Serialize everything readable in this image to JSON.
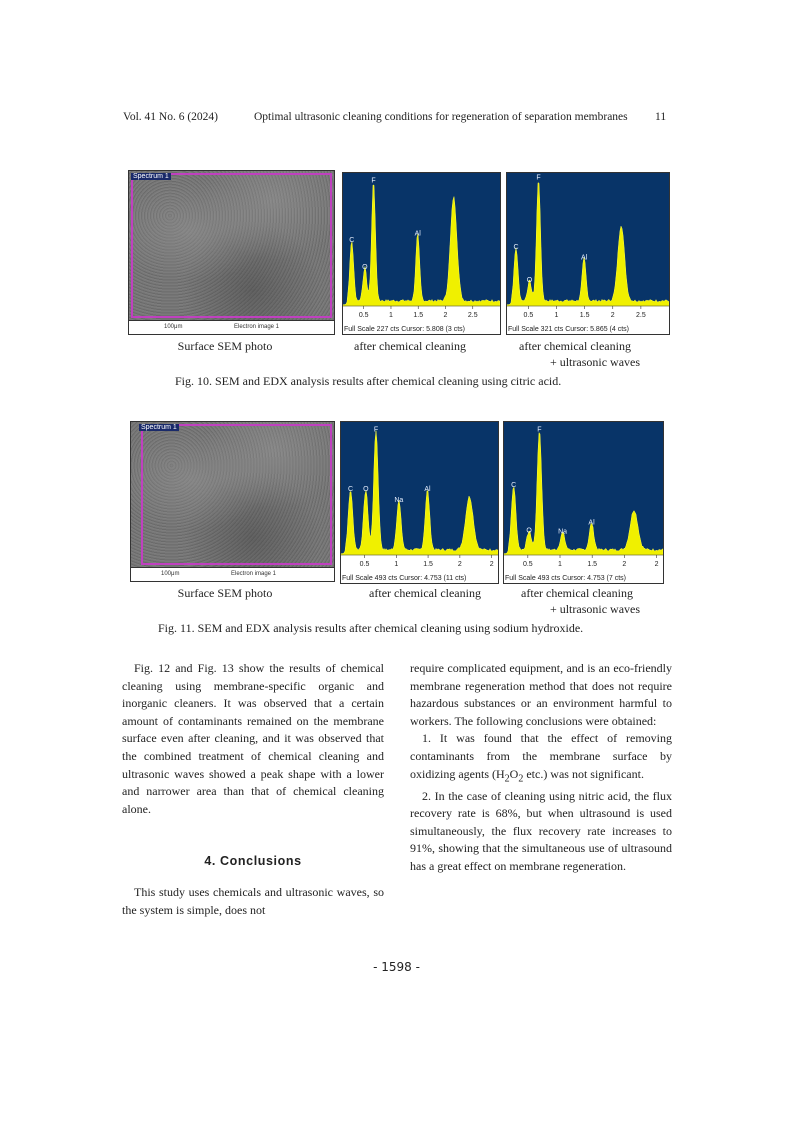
{
  "header": {
    "volume": "Vol. 41 No. 6 (2024)",
    "title": "Optimal ultrasonic cleaning conditions for regeneration of separation membranes",
    "page": "11"
  },
  "fig10": {
    "sem": {
      "label": "Spectrum 1",
      "scale": "100μm",
      "image": "Electron image 1"
    },
    "captions": [
      "Surface SEM photo",
      "after chemical cleaning",
      "after chemical cleaning",
      "+ ultrasonic waves"
    ],
    "caption": "Fig. 10. SEM and EDX analysis results after chemical cleaning using citric acid."
  },
  "fig11": {
    "sem": {
      "label": "Spectrum 1",
      "scale": "100μm",
      "image": "Electron image 1"
    },
    "captions": [
      "Surface SEM photo",
      "after chemical cleaning",
      "after chemical cleaning",
      "+ ultrasonic waves"
    ],
    "caption": "Fig. 11. SEM and EDX analysis results after chemical cleaning using sodium hydroxide."
  },
  "chart_data": [
    {
      "type": "area",
      "figure": "Fig. 10",
      "panel": "after chemical cleaning",
      "xlim": [
        0.12,
        3.0
      ],
      "ticks": [
        "0.5",
        "1",
        "1.5",
        "2",
        "2.5"
      ],
      "footer": "Full Scale 227 cts Cursor: 5.808 (3 cts)",
      "peaks": [
        {
          "label": "C",
          "x": 0.28,
          "y": 0.45
        },
        {
          "label": "O",
          "x": 0.52,
          "y": 0.25
        },
        {
          "label": "F",
          "x": 0.68,
          "y": 0.9
        },
        {
          "label": "Al",
          "x": 1.49,
          "y": 0.5
        },
        {
          "label": "",
          "x": 2.15,
          "y": 0.78
        }
      ]
    },
    {
      "type": "area",
      "figure": "Fig. 10",
      "panel": "after chemical cleaning + ultrasonic waves",
      "xlim": [
        0.12,
        3.0
      ],
      "ticks": [
        "0.5",
        "1",
        "1.5",
        "2",
        "2.5"
      ],
      "footer": "Full Scale 321 cts Cursor: 5.865 (4 cts)",
      "peaks": [
        {
          "label": "C",
          "x": 0.28,
          "y": 0.4
        },
        {
          "label": "O",
          "x": 0.52,
          "y": 0.15
        },
        {
          "label": "F",
          "x": 0.68,
          "y": 0.92
        },
        {
          "label": "Al",
          "x": 1.49,
          "y": 0.32
        },
        {
          "label": "",
          "x": 2.15,
          "y": 0.57
        }
      ]
    },
    {
      "type": "area",
      "figure": "Fig. 11",
      "panel": "after chemical cleaning",
      "xlim": [
        0.13,
        2.6
      ],
      "ticks": [
        "0.5",
        "1",
        "1.5",
        "2",
        "2"
      ],
      "footer": "Full Scale 493 cts Cursor: 4.753 (11 cts)",
      "peaks": [
        {
          "label": "C",
          "x": 0.28,
          "y": 0.45
        },
        {
          "label": "O",
          "x": 0.52,
          "y": 0.45
        },
        {
          "label": "F",
          "x": 0.68,
          "y": 0.9
        },
        {
          "label": "Na",
          "x": 1.04,
          "y": 0.37
        },
        {
          "label": "Al",
          "x": 1.49,
          "y": 0.45
        },
        {
          "label": "",
          "x": 2.15,
          "y": 0.4
        }
      ]
    },
    {
      "type": "area",
      "figure": "Fig. 11",
      "panel": "after chemical cleaning + ultrasonic waves",
      "xlim": [
        0.13,
        2.6
      ],
      "ticks": [
        "0.5",
        "1",
        "1.5",
        "2",
        "2"
      ],
      "footer": "Full Scale 493 cts Cursor: 4.753 (7 cts)",
      "peaks": [
        {
          "label": "C",
          "x": 0.28,
          "y": 0.48
        },
        {
          "label": "O",
          "x": 0.52,
          "y": 0.14
        },
        {
          "label": "F",
          "x": 0.68,
          "y": 0.9
        },
        {
          "label": "Na",
          "x": 1.04,
          "y": 0.13
        },
        {
          "label": "Al",
          "x": 1.49,
          "y": 0.2
        },
        {
          "label": "",
          "x": 2.15,
          "y": 0.3
        }
      ]
    }
  ],
  "body": {
    "left_p1": "Fig. 12 and Fig. 13 show the results of chemical cleaning using membrane-specific organic and inorganic cleaners. It was observed that a certain amount of contaminants remained on the membrane surface even after cleaning, and it was observed that the combined treatment of chemical cleaning and ultrasonic waves showed a peak shape with a lower and narrower area than that of chemical cleaning alone.",
    "heading": "4. Conclusions",
    "left_p2": "This study uses chemicals and ultrasonic waves, so the system is simple, does not",
    "right_p1": "require complicated equipment, and is an eco-friendly membrane regeneration method that does not require hazardous substances or an environment harmful to workers. The following conclusions were obtained:",
    "right_p2a": "1. It was found that the effect of removing contaminants from the membrane surface by oxidizing agents (H",
    "sub2": "2",
    "o": "O",
    "right_p2b": " etc.) was not significant.",
    "right_p3": "2. In the case of cleaning using nitric acid, the flux recovery rate is 68%, but when ultrasound is used simultaneously, the flux recovery rate increases to 91%, showing that the simultaneous use of ultrasound has a great effect on membrane regeneration."
  },
  "footer": {
    "page_number": "- 1598 -"
  }
}
